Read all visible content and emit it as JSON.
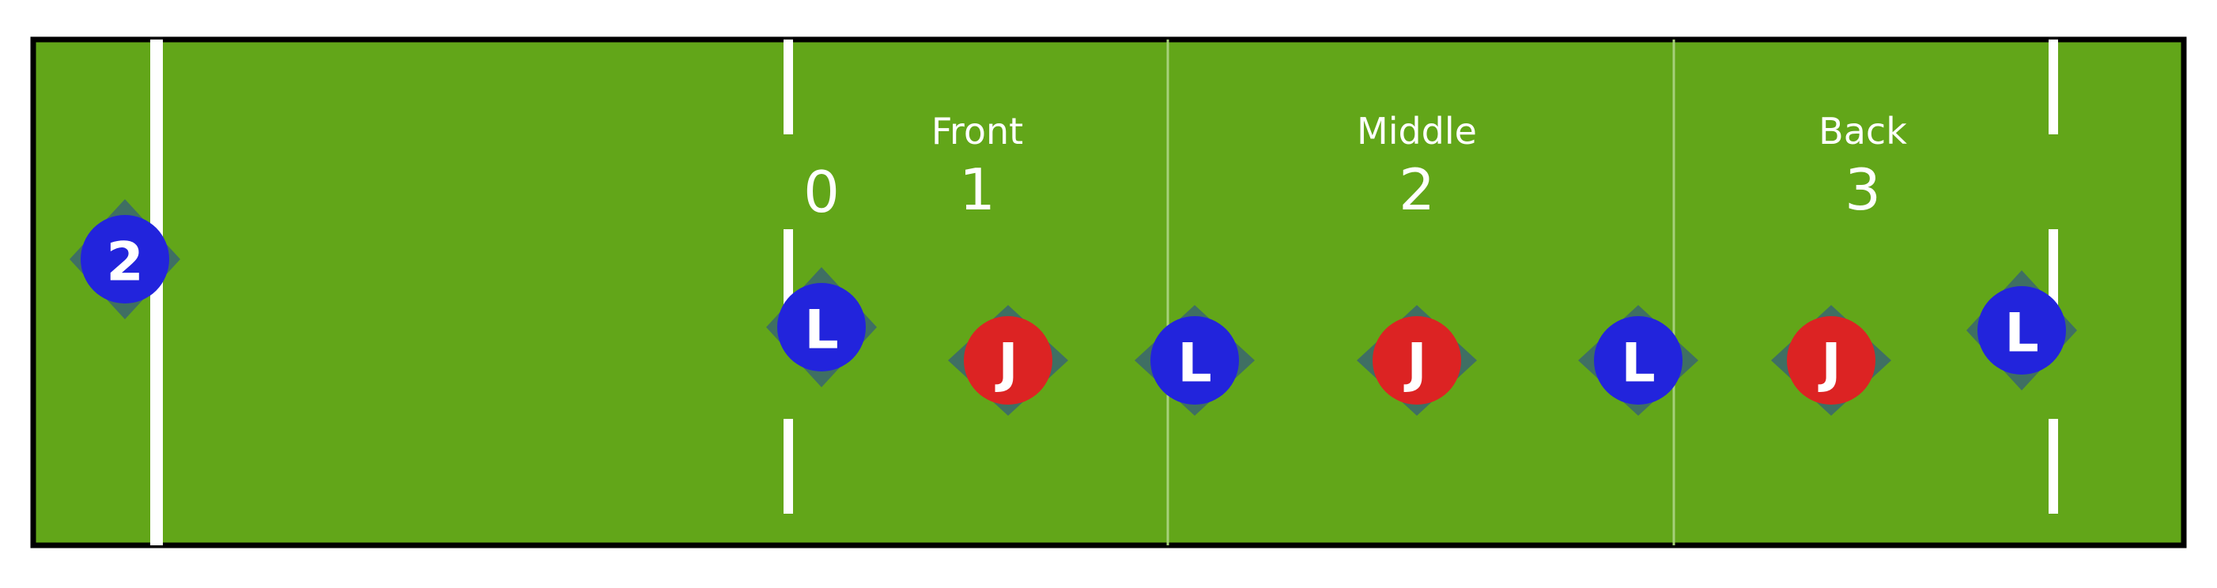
{
  "colors": {
    "grass": "#62a619",
    "border": "#000000",
    "line": "#ffffff",
    "zone_divider": "#a6d07a",
    "shadow": "#3f6f63",
    "blue_team": "#2224dc",
    "red_team": "#dc2323",
    "text": "#ffffff"
  },
  "zones": [
    {
      "title": "Front",
      "number": "1"
    },
    {
      "title": "Middle",
      "number": "2"
    },
    {
      "title": "Back",
      "number": "3"
    }
  ],
  "start_label": "0",
  "tokens": [
    {
      "label": "2",
      "team": "blue"
    },
    {
      "label": "L",
      "team": "blue"
    },
    {
      "label": "J",
      "team": "red"
    },
    {
      "label": "L",
      "team": "blue"
    },
    {
      "label": "J",
      "team": "red"
    },
    {
      "label": "L",
      "team": "blue"
    },
    {
      "label": "J",
      "team": "red"
    },
    {
      "label": "L",
      "team": "blue"
    }
  ]
}
